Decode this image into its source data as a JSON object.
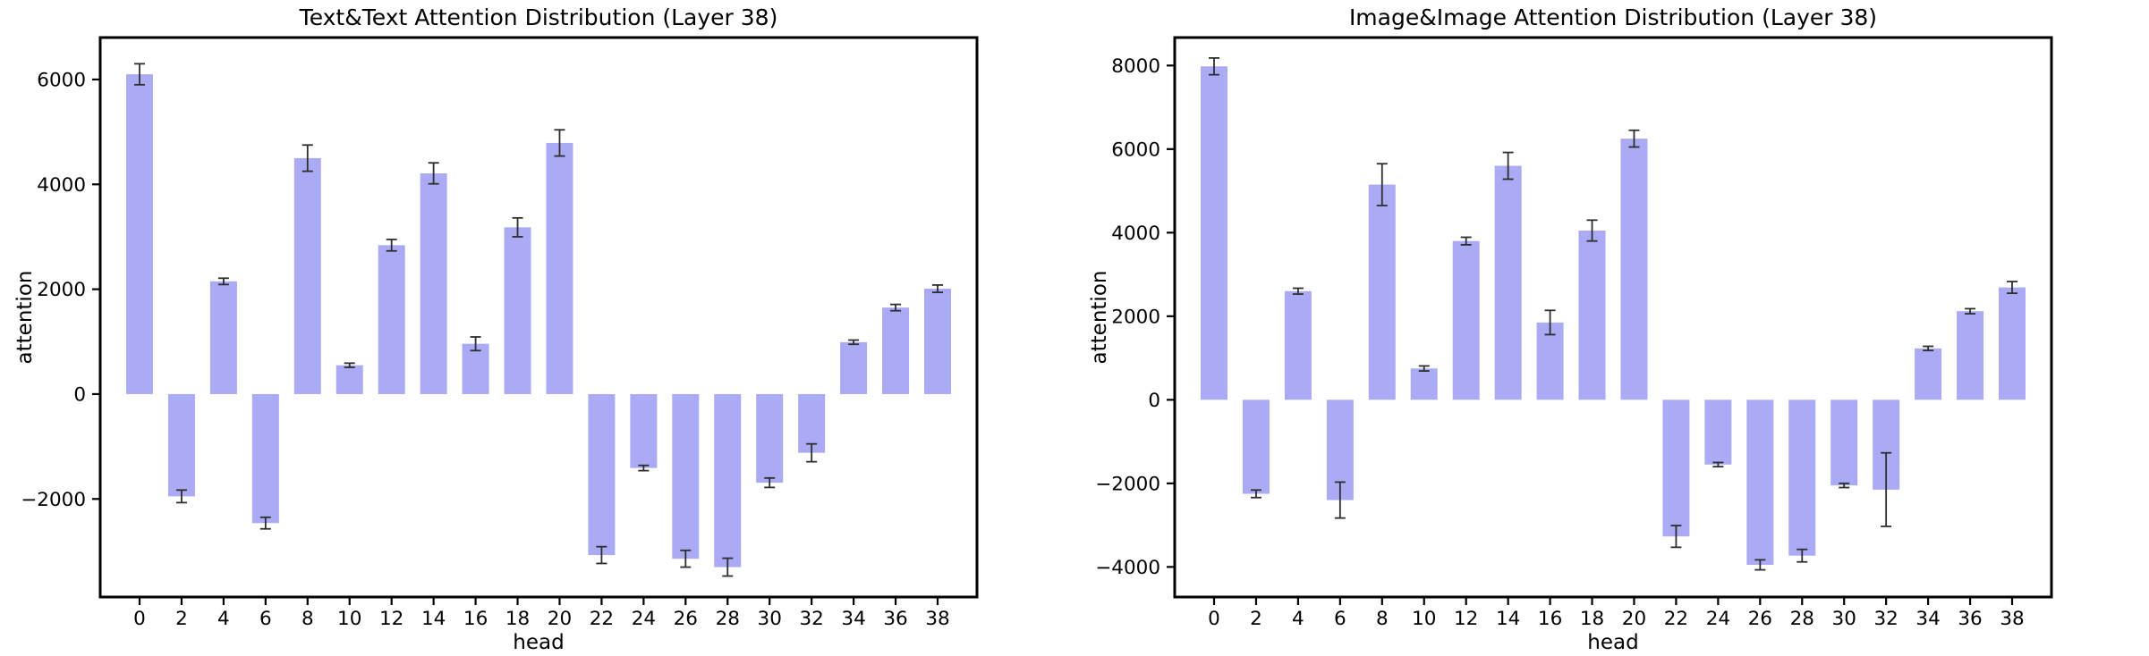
{
  "page": {
    "background": "#ffffff",
    "description_left_title": "Text&Text Attention Distribution (Layer 38)",
    "description_right_title": "Image&Image Attention Distribution (Layer 38)"
  },
  "chart_data": [
    {
      "type": "bar",
      "title": "Text&Text Attention Distribution (Layer 38)",
      "xlabel": "head",
      "ylabel": "attention",
      "categories": [
        "0",
        "2",
        "4",
        "6",
        "8",
        "10",
        "12",
        "14",
        "16",
        "18",
        "20",
        "22",
        "24",
        "26",
        "28",
        "30",
        "32",
        "34",
        "36",
        "38"
      ],
      "values": [
        6100,
        -1950,
        2150,
        -2460,
        4500,
        550,
        2840,
        4210,
        960,
        3180,
        4790,
        -3070,
        -1410,
        -3140,
        -3300,
        -1690,
        -1120,
        990,
        1650,
        2010
      ],
      "errors": [
        200,
        120,
        60,
        110,
        250,
        40,
        110,
        200,
        130,
        180,
        250,
        160,
        50,
        160,
        170,
        90,
        170,
        40,
        60,
        70
      ],
      "yticks": [
        -2000,
        0,
        2000,
        4000,
        6000
      ],
      "ylim": [
        -3870,
        6800
      ],
      "grid": false,
      "legend": null,
      "bar_color": "#aaaaf5",
      "error_color": "#2e2e2e",
      "axis_color": "#000000"
    },
    {
      "type": "bar",
      "title": "Image&Image Attention Distribution (Layer 38)",
      "xlabel": "head",
      "ylabel": "attention",
      "categories": [
        "0",
        "2",
        "4",
        "6",
        "8",
        "10",
        "12",
        "14",
        "16",
        "18",
        "20",
        "22",
        "24",
        "26",
        "28",
        "30",
        "32",
        "34",
        "36",
        "38"
      ],
      "values": [
        7980,
        -2250,
        2600,
        -2400,
        5150,
        750,
        3800,
        5600,
        1850,
        4050,
        6250,
        -3270,
        -1550,
        -3950,
        -3730,
        -2050,
        -2150,
        1230,
        2120,
        2690
      ],
      "errors": [
        200,
        90,
        70,
        430,
        500,
        60,
        90,
        320,
        290,
        250,
        200,
        260,
        50,
        120,
        150,
        50,
        880,
        50,
        60,
        140
      ],
      "yticks": [
        -4000,
        -2000,
        0,
        2000,
        4000,
        6000,
        8000
      ],
      "ylim": [
        -4720,
        8670
      ],
      "grid": false,
      "legend": null,
      "bar_color": "#aaaaf5",
      "error_color": "#2e2e2e",
      "axis_color": "#000000"
    }
  ]
}
